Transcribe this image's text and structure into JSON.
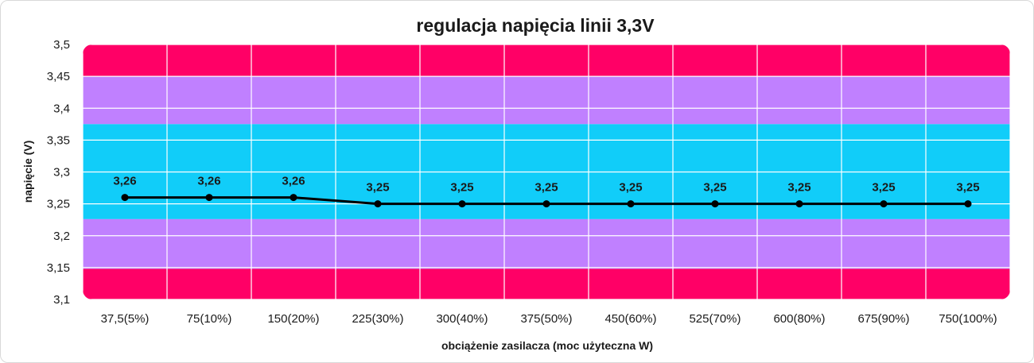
{
  "chart_data": {
    "type": "line",
    "title": "regulacja napięcia linii 3,3V",
    "xlabel": "obciążenie zasilacza (moc użyteczna W)",
    "ylabel": "napięcie (V)",
    "categories": [
      "37,5(5%)",
      "75(10%)",
      "150(20%)",
      "225(30%)",
      "300(40%)",
      "375(50%)",
      "450(60%)",
      "525(70%)",
      "600(80%)",
      "675(90%)",
      "750(100%)"
    ],
    "series": [
      {
        "values": [
          3.26,
          3.26,
          3.26,
          3.25,
          3.25,
          3.25,
          3.25,
          3.25,
          3.25,
          3.25,
          3.25
        ],
        "labels": [
          "3,26",
          "3,26",
          "3,26",
          "3,25",
          "3,25",
          "3,25",
          "3,25",
          "3,25",
          "3,25",
          "3,25",
          "3,25"
        ],
        "color": "#000000"
      }
    ],
    "ylim": [
      3.1,
      3.5
    ],
    "yticks": [
      3.5,
      3.45,
      3.4,
      3.35,
      3.3,
      3.25,
      3.2,
      3.15,
      3.1
    ],
    "ytick_labels": [
      "3,5",
      "3,45",
      "3,4",
      "3,35",
      "3,3",
      "3,25",
      "3,2",
      "3,15",
      "3,1"
    ],
    "bands": [
      {
        "from": 3.45,
        "to": 3.5,
        "color": "#ff0066"
      },
      {
        "from": 3.375,
        "to": 3.45,
        "color": "#c080ff"
      },
      {
        "from": 3.226,
        "to": 3.375,
        "color": "#11cdf9"
      },
      {
        "from": 3.148,
        "to": 3.226,
        "color": "#c080ff"
      },
      {
        "from": 3.1,
        "to": 3.148,
        "color": "#ff0066"
      }
    ],
    "grid": true,
    "legend": "none"
  }
}
